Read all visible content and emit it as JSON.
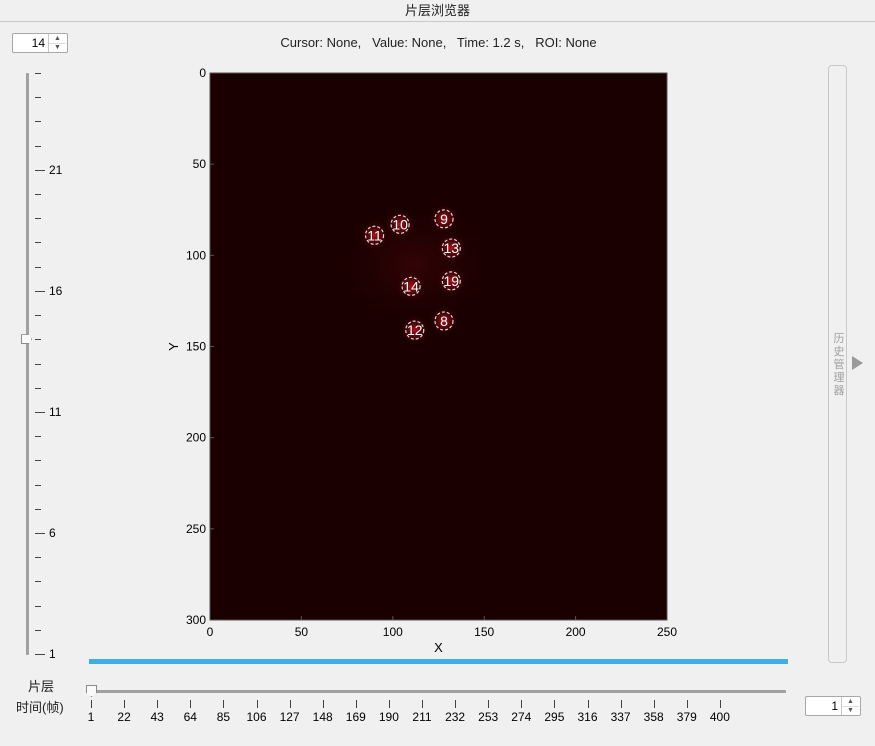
{
  "window": {
    "title": "片层浏览器"
  },
  "slice_spinner": {
    "value": "14"
  },
  "info_bar": {
    "text": "Cursor: None,   Value: None,   Time: 1.2 s,   ROI: None"
  },
  "slice_slider": {
    "labels": [
      "21",
      "16",
      "11",
      "6",
      "1"
    ],
    "value": 14,
    "min": 1,
    "max": 25
  },
  "image": {
    "xlabel": "X",
    "ylabel": "Y",
    "x_ticks": [
      "0",
      "50",
      "100",
      "150",
      "200",
      "250"
    ],
    "y_ticks": [
      "0",
      "50",
      "100",
      "150",
      "200",
      "250",
      "300"
    ],
    "xlim": [
      0,
      250
    ],
    "ylim": [
      0,
      300
    ],
    "colormap": "hot-dark",
    "background_color": "#1a0000",
    "rois": [
      {
        "id": "9",
        "x": 128,
        "y": 80
      },
      {
        "id": "10",
        "x": 104,
        "y": 83
      },
      {
        "id": "11",
        "x": 90,
        "y": 89
      },
      {
        "id": "13",
        "x": 132,
        "y": 96
      },
      {
        "id": "19",
        "x": 132,
        "y": 114
      },
      {
        "id": "14",
        "x": 110,
        "y": 117
      },
      {
        "id": "8",
        "x": 128,
        "y": 136
      },
      {
        "id": "12",
        "x": 112,
        "y": 141
      }
    ]
  },
  "history_panel": {
    "label": "历史管理器"
  },
  "bottom": {
    "slice_label": "片层",
    "time_label": "时间(帧)",
    "time_ticks": [
      "1",
      "22",
      "43",
      "64",
      "85",
      "106",
      "127",
      "148",
      "169",
      "190",
      "211",
      "232",
      "253",
      "274",
      "295",
      "316",
      "337",
      "358",
      "379",
      "400"
    ],
    "time_value": 1
  },
  "frame_spinner": {
    "value": "1"
  },
  "colors": {
    "progress_bar": "#3daee9",
    "roi_fill": "#e01020"
  }
}
